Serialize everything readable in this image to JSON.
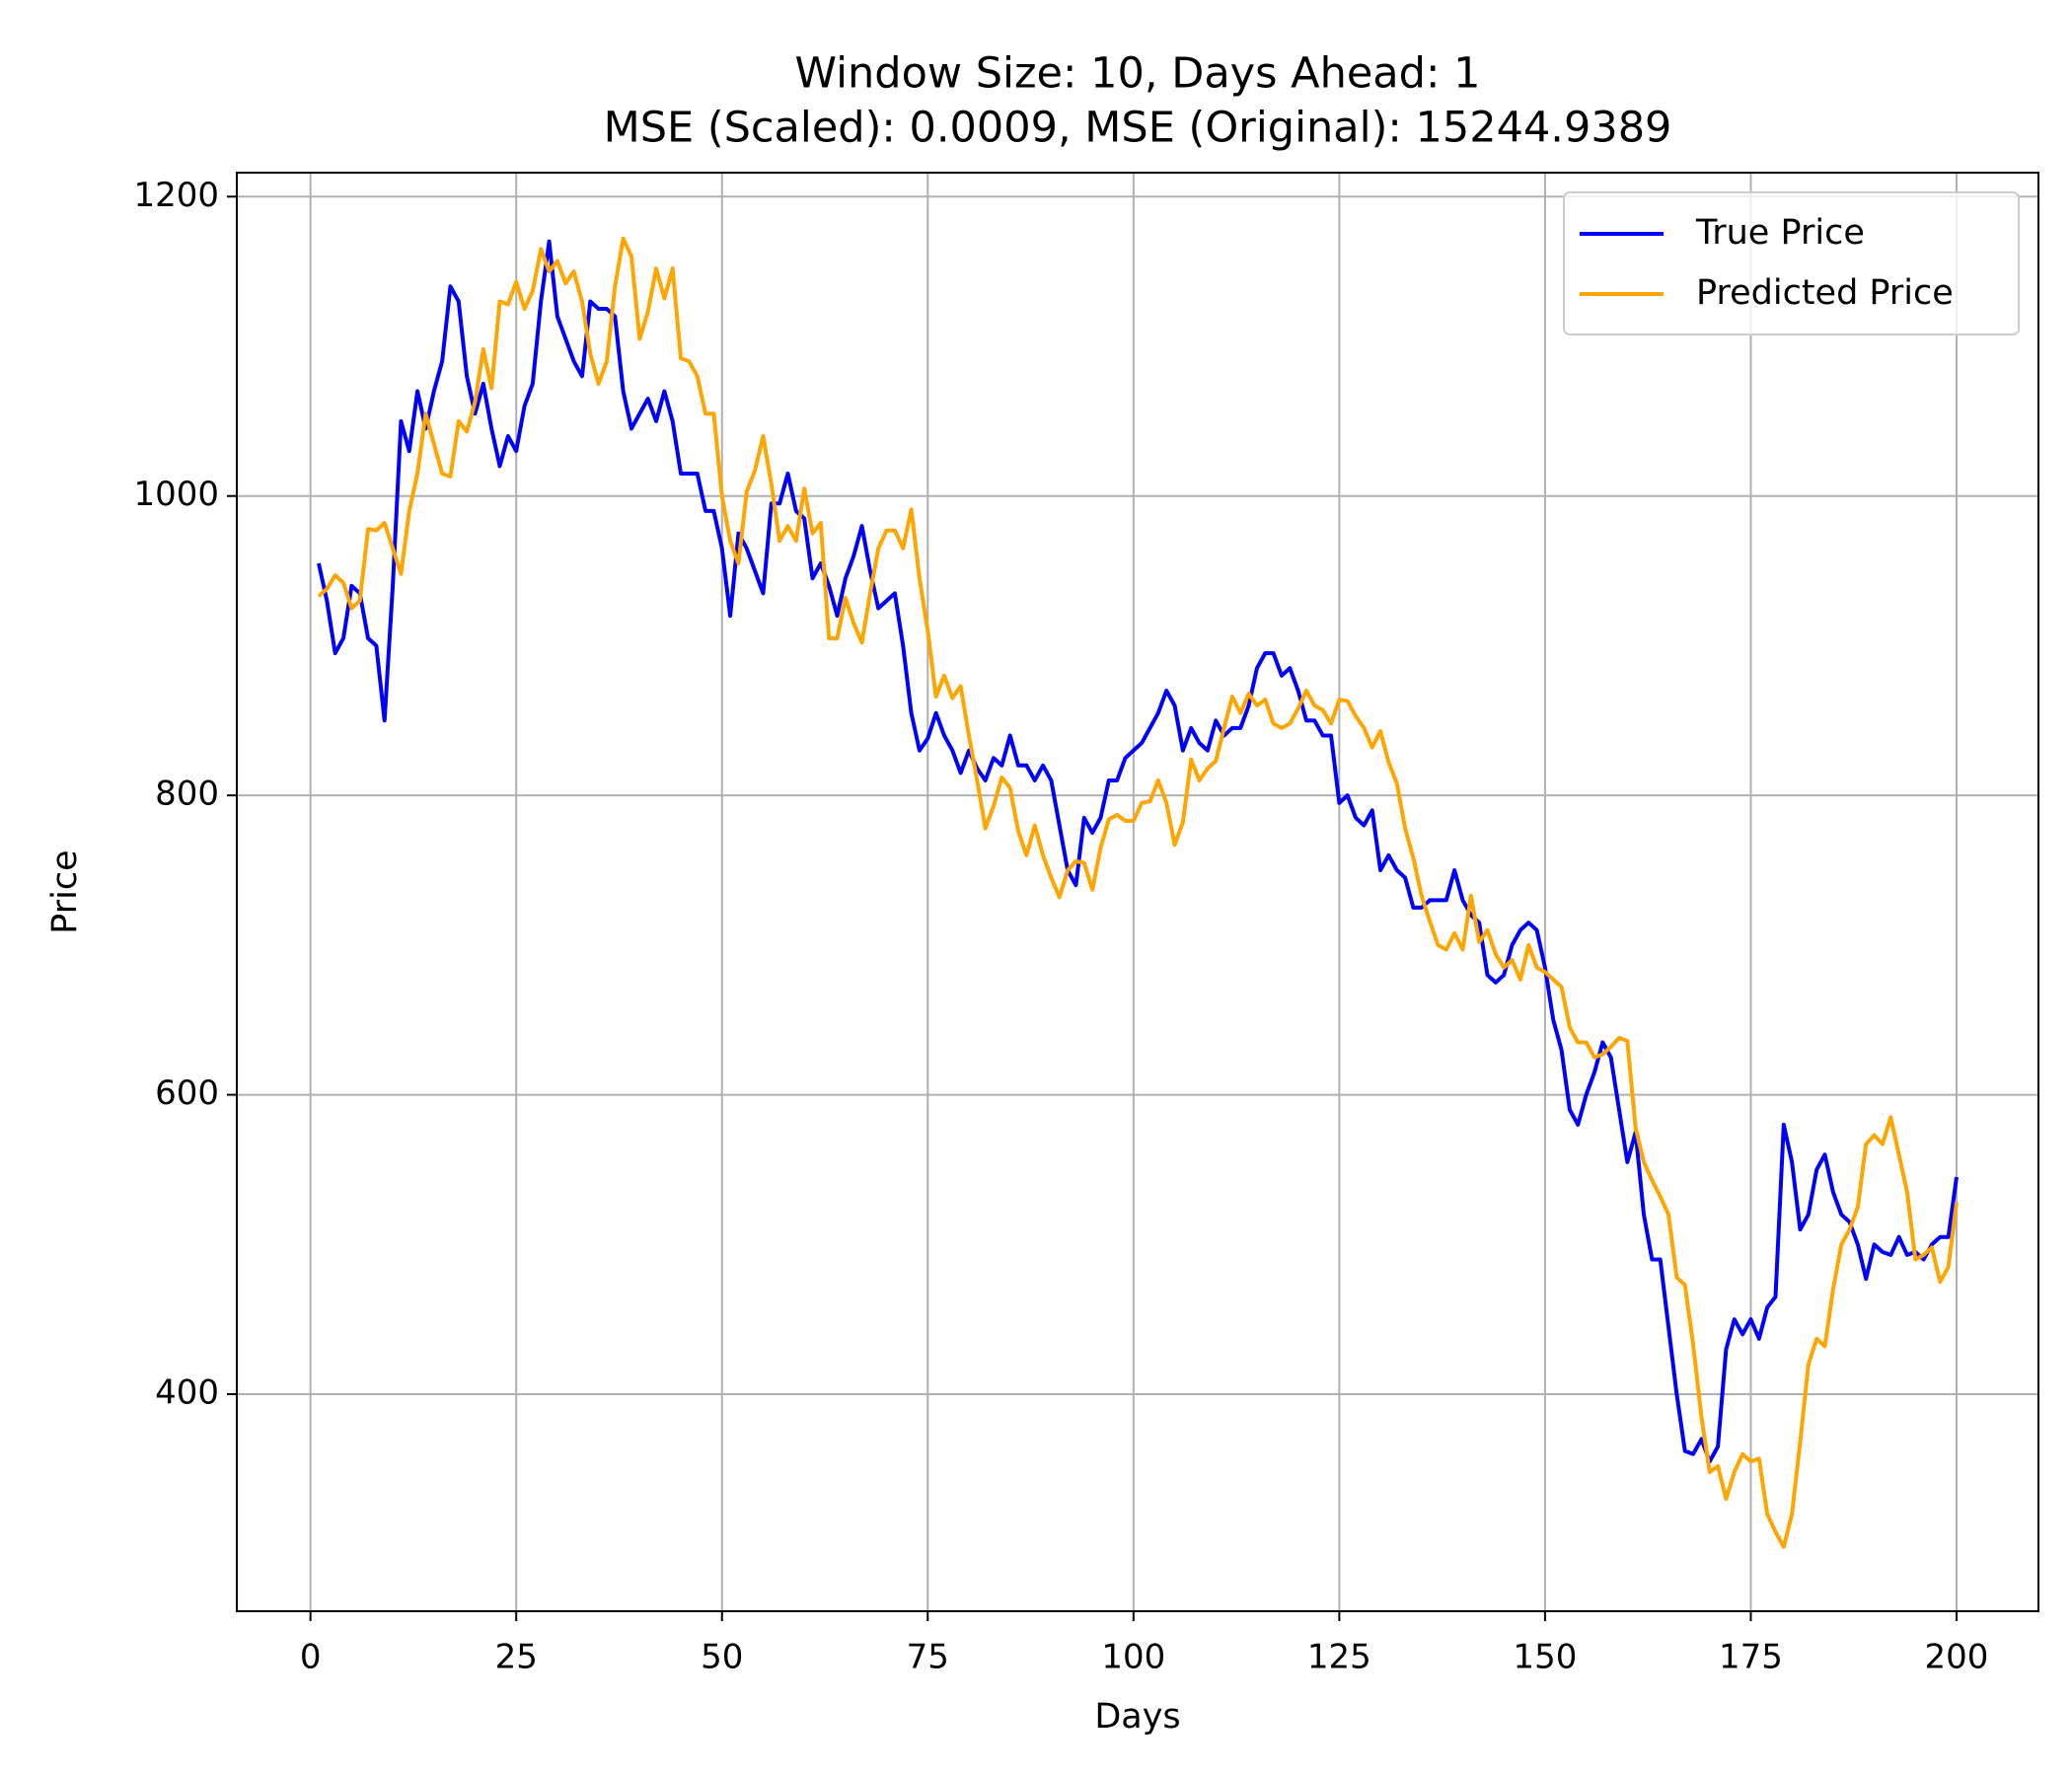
{
  "chart_data": {
    "type": "line",
    "title": "Window Size: 10, Days Ahead: 1",
    "subtitle": "MSE (Scaled): 0.0009, MSE (Original): 15244.9389",
    "xlabel": "Days",
    "ylabel": "Price",
    "x": [
      1,
      2,
      3,
      4,
      5,
      6,
      7,
      8,
      9,
      10,
      11,
      12,
      13,
      14,
      15,
      16,
      17,
      18,
      19,
      20,
      21,
      22,
      23,
      24,
      25,
      26,
      27,
      28,
      29,
      30,
      31,
      32,
      33,
      34,
      35,
      36,
      37,
      38,
      39,
      40,
      41,
      42,
      43,
      44,
      45,
      46,
      47,
      48,
      49,
      50,
      51,
      52,
      53,
      54,
      55,
      56,
      57,
      58,
      59,
      60,
      61,
      62,
      63,
      64,
      65,
      66,
      67,
      68,
      69,
      70,
      71,
      72,
      73,
      74,
      75,
      76,
      77,
      78,
      79,
      80,
      81,
      82,
      83,
      84,
      85,
      86,
      87,
      88,
      89,
      90,
      91,
      92,
      93,
      94,
      95,
      96,
      97,
      98,
      99,
      100,
      101,
      102,
      103,
      104,
      105,
      106,
      107,
      108,
      109,
      110,
      111,
      112,
      113,
      114,
      115,
      116,
      117,
      118,
      119,
      120,
      121,
      122,
      123,
      124,
      125,
      126,
      127,
      128,
      129,
      130,
      131,
      132,
      133,
      134,
      135,
      136,
      137,
      138,
      139,
      140,
      141,
      142,
      143,
      144,
      145,
      146,
      147,
      148,
      149,
      150,
      151,
      152,
      153,
      154,
      155,
      156,
      157,
      158,
      159,
      160,
      161,
      162,
      163,
      164,
      165,
      166,
      167,
      168,
      169,
      170,
      171,
      172,
      173,
      174,
      175,
      176,
      177,
      178,
      179,
      180,
      181,
      182,
      183,
      184,
      185,
      186,
      187,
      188,
      189,
      190,
      191,
      192,
      193,
      194,
      195,
      196,
      197,
      198,
      199,
      200
    ],
    "series": [
      {
        "name": "True Price",
        "color": "#0000ff",
        "values": [
          955,
          930,
          895,
          905,
          940,
          935,
          905,
          900,
          850,
          940,
          1050,
          1030,
          1070,
          1045,
          1070,
          1090,
          1140,
          1130,
          1080,
          1055,
          1075,
          1045,
          1020,
          1040,
          1030,
          1060,
          1075,
          1130,
          1170,
          1120,
          1105,
          1090,
          1080,
          1130,
          1125,
          1125,
          1120,
          1070,
          1045,
          1055,
          1065,
          1050,
          1070,
          1050,
          1015,
          1015,
          1015,
          990,
          990,
          965,
          920,
          975,
          965,
          950,
          935,
          995,
          995,
          1015,
          990,
          985,
          945,
          955,
          940,
          920,
          945,
          960,
          980,
          950,
          925,
          930,
          935,
          900,
          855,
          830,
          838,
          855,
          840,
          830,
          815,
          830,
          818,
          810,
          825,
          820,
          840,
          820,
          820,
          810,
          820,
          810,
          780,
          750,
          740,
          785,
          775,
          785,
          810,
          810,
          825,
          830,
          835,
          845,
          855,
          870,
          860,
          830,
          845,
          835,
          830,
          850,
          840,
          845,
          845,
          860,
          885,
          895,
          895,
          880,
          885,
          870,
          850,
          850,
          840,
          840,
          795,
          800,
          785,
          780,
          790,
          750,
          760,
          750,
          745,
          725,
          725,
          730,
          730,
          730,
          750,
          730,
          720,
          715,
          680,
          675,
          680,
          700,
          710,
          715,
          710,
          685,
          650,
          630,
          590,
          580,
          600,
          615,
          635,
          625,
          590,
          555,
          575,
          520,
          490,
          490,
          445,
          400,
          362,
          360,
          370,
          355,
          365,
          430,
          450,
          440,
          450,
          437,
          458,
          465,
          580,
          555,
          510,
          520,
          550,
          560,
          535,
          520,
          515,
          500,
          477,
          500,
          495,
          493,
          505,
          493,
          495,
          490,
          500,
          505,
          505,
          545
        ]
      },
      {
        "name": "Predicted Price",
        "color": "#ffa500",
        "values": [
          933,
          938,
          947,
          942,
          925,
          930,
          978,
          977,
          982,
          965,
          948,
          990,
          1015,
          1055,
          1035,
          1015,
          1013,
          1050,
          1043,
          1063,
          1098,
          1072,
          1130,
          1128,
          1143,
          1125,
          1137,
          1165,
          1150,
          1157,
          1142,
          1150,
          1130,
          1095,
          1075,
          1090,
          1140,
          1172,
          1160,
          1105,
          1123,
          1152,
          1132,
          1152,
          1092,
          1090,
          1080,
          1055,
          1055,
          1000,
          970,
          955,
          1003,
          1017,
          1040,
          1008,
          970,
          980,
          970,
          1005,
          975,
          982,
          905,
          905,
          932,
          915,
          902,
          935,
          965,
          977,
          977,
          965,
          991,
          945,
          910,
          866,
          880,
          865,
          873,
          840,
          810,
          778,
          793,
          812,
          805,
          776,
          760,
          780,
          760,
          745,
          732,
          750,
          756,
          755,
          737,
          765,
          784,
          787,
          783,
          783,
          795,
          796,
          810,
          795,
          767,
          782,
          824,
          810,
          818,
          823,
          845,
          866,
          855,
          868,
          860,
          864,
          848,
          845,
          848,
          858,
          870,
          860,
          857,
          848,
          864,
          863,
          853,
          845,
          832,
          843,
          822,
          808,
          778,
          758,
          733,
          716,
          700,
          697,
          708,
          697,
          733,
          702,
          710,
          694,
          685,
          690,
          677,
          700,
          685,
          682,
          677,
          672,
          645,
          635,
          635,
          625,
          627,
          632,
          638,
          636,
          578,
          555,
          543,
          532,
          520,
          478,
          473,
          433,
          385,
          348,
          352,
          330,
          348,
          360,
          355,
          357,
          320,
          308,
          298,
          320,
          368,
          420,
          437,
          432,
          470,
          500,
          510,
          525,
          567,
          573,
          567,
          585,
          560,
          535,
          490,
          493,
          498,
          475,
          485,
          528
        ]
      }
    ],
    "xlim": [
      -8.95,
      209.95
    ],
    "ylim": [
      255,
      1216
    ],
    "xticks": [
      0,
      25,
      50,
      75,
      100,
      125,
      150,
      175,
      200
    ],
    "yticks": [
      400,
      600,
      800,
      1000,
      1200
    ],
    "grid": true,
    "legend": "upper right"
  }
}
